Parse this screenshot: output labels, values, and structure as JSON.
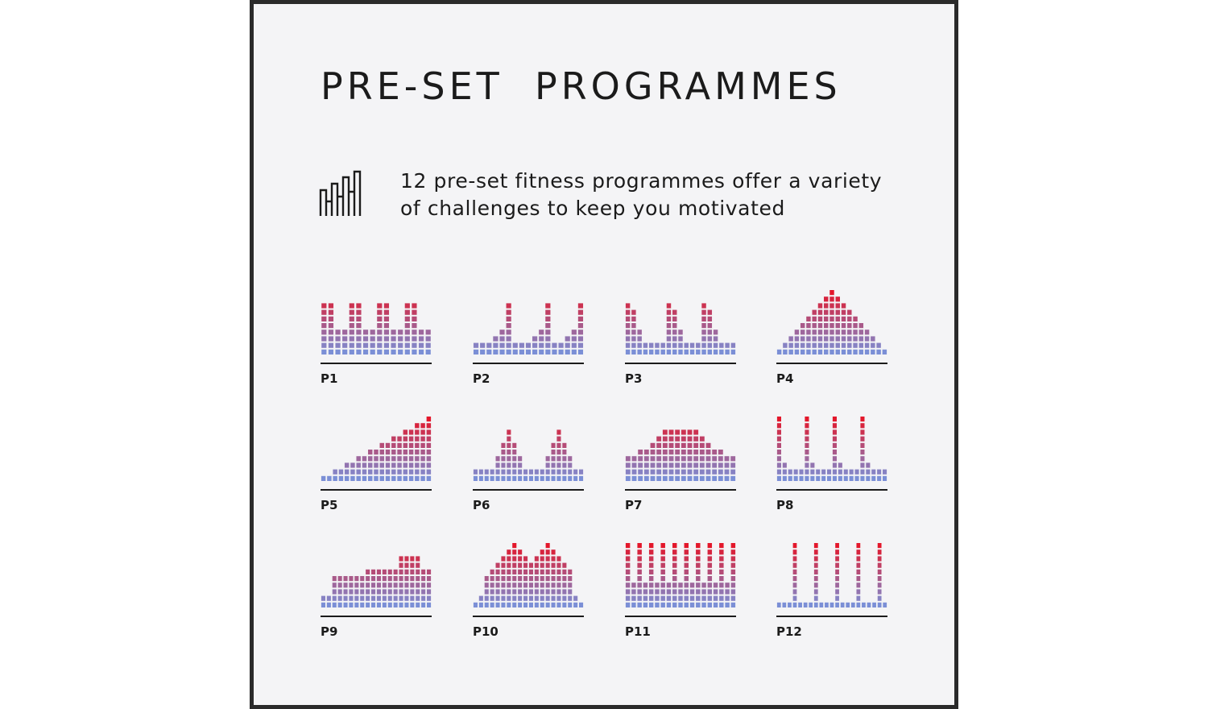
{
  "title": "PRE-SET  PROGRAMMES",
  "description": {
    "line1": "12 pre-set fitness programmes offer a variety",
    "line2": "of challenges to keep you motivated",
    "icon": "bar-chart-outline-icon"
  },
  "colors": {
    "low": "#7b8fd6",
    "high": "#e3172b",
    "text": "#1b1b1b",
    "border": "#2a2a2a",
    "background": "#f4f4f6"
  },
  "chart_data": {
    "type": "bar",
    "title": "PRE-SET PROGRAMMES",
    "max_level": 10,
    "programs": [
      {
        "name": "P1",
        "levels": [
          8,
          8,
          4,
          4,
          8,
          8,
          4,
          4,
          8,
          8,
          4,
          4,
          8,
          8,
          4,
          4
        ]
      },
      {
        "name": "P2",
        "levels": [
          2,
          2,
          2,
          3,
          4,
          8,
          2,
          2,
          2,
          3,
          4,
          8,
          2,
          2,
          3,
          4,
          8
        ]
      },
      {
        "name": "P3",
        "levels": [
          8,
          7,
          4,
          2,
          2,
          2,
          2,
          8,
          7,
          4,
          2,
          2,
          2,
          8,
          7,
          4,
          2,
          2,
          2
        ]
      },
      {
        "name": "P4",
        "levels": [
          1,
          2,
          3,
          4,
          5,
          6,
          7,
          8,
          9,
          10,
          9,
          8,
          7,
          6,
          5,
          4,
          3,
          2,
          1
        ]
      },
      {
        "name": "P5",
        "levels": [
          1,
          1,
          2,
          2,
          3,
          3,
          4,
          4,
          5,
          5,
          6,
          6,
          7,
          7,
          8,
          8,
          9,
          9,
          10
        ]
      },
      {
        "name": "P6",
        "levels": [
          2,
          2,
          2,
          2,
          4,
          6,
          8,
          6,
          4,
          2,
          2,
          2,
          2,
          4,
          6,
          8,
          6,
          4,
          2,
          2
        ]
      },
      {
        "name": "P7",
        "levels": [
          4,
          4,
          5,
          5,
          6,
          7,
          8,
          8,
          8,
          8,
          8,
          8,
          7,
          6,
          5,
          5,
          4,
          4
        ]
      },
      {
        "name": "P8",
        "levels": [
          10,
          3,
          2,
          2,
          2,
          10,
          3,
          2,
          2,
          2,
          10,
          3,
          2,
          2,
          2,
          10,
          3,
          2,
          2,
          2
        ]
      },
      {
        "name": "P9",
        "levels": [
          2,
          2,
          5,
          5,
          5,
          5,
          5,
          5,
          6,
          6,
          6,
          6,
          6,
          6,
          8,
          8,
          8,
          8,
          6,
          6
        ]
      },
      {
        "name": "P10",
        "levels": [
          1,
          2,
          5,
          6,
          7,
          8,
          9,
          10,
          9,
          8,
          7,
          8,
          9,
          10,
          9,
          8,
          7,
          6,
          2,
          1
        ]
      },
      {
        "name": "P11",
        "levels": [
          10,
          4,
          10,
          4,
          10,
          4,
          10,
          4,
          10,
          4,
          10,
          4,
          10,
          4,
          10,
          4,
          10,
          4,
          10
        ]
      },
      {
        "name": "P12",
        "levels": [
          1,
          1,
          1,
          10,
          1,
          1,
          1,
          10,
          1,
          1,
          1,
          10,
          1,
          1,
          1,
          10,
          1,
          1,
          1,
          10,
          1
        ]
      }
    ]
  }
}
